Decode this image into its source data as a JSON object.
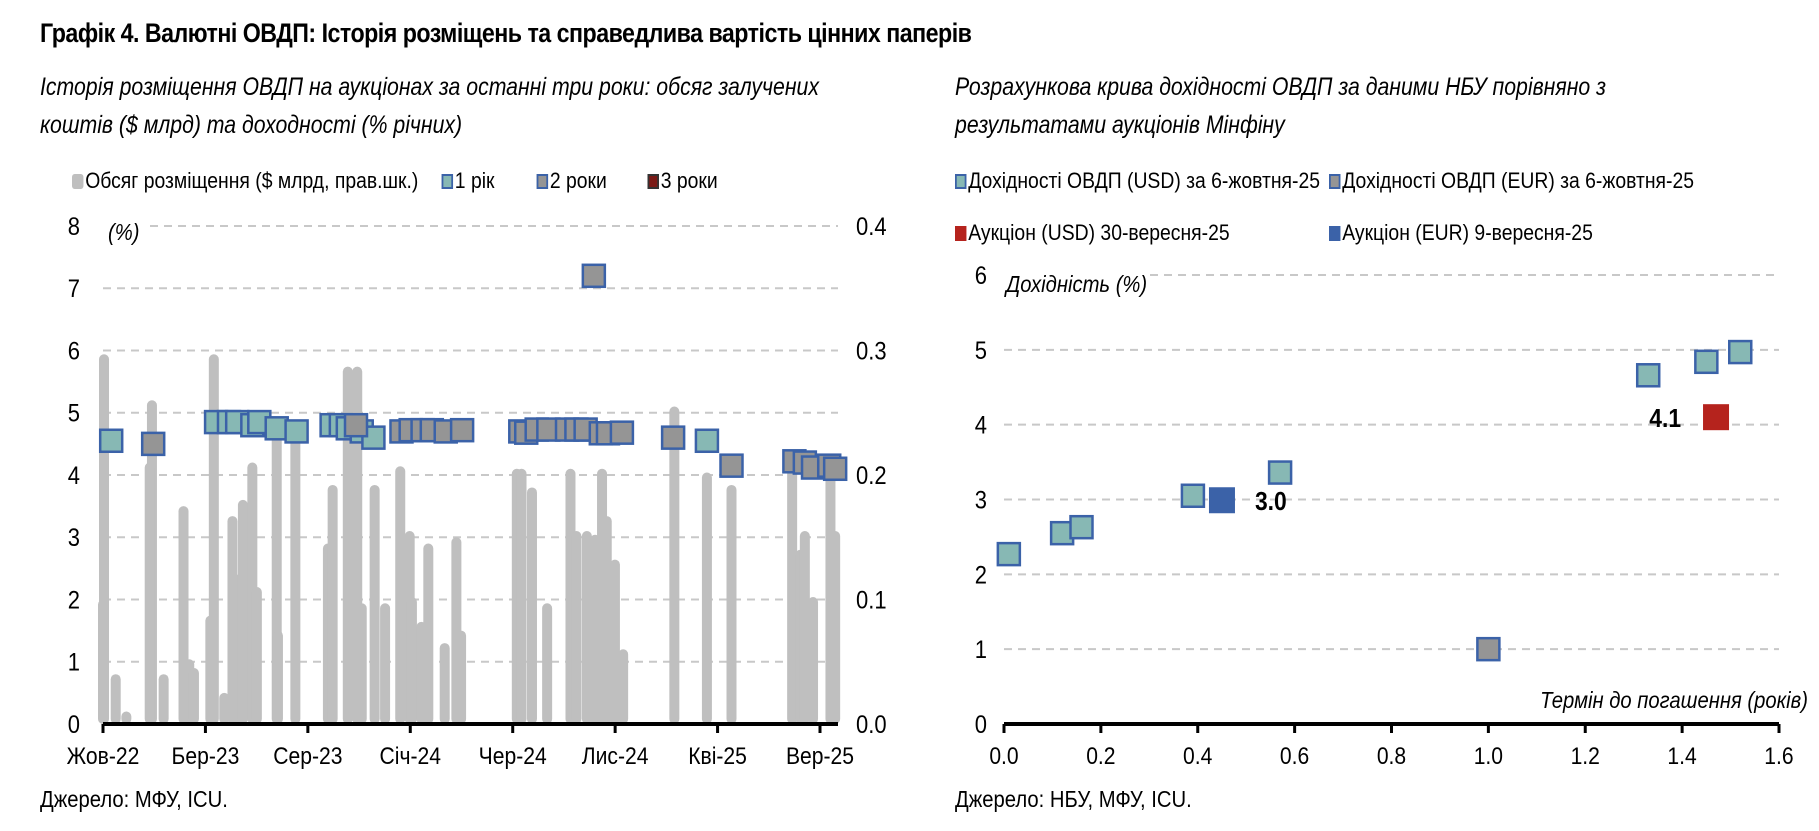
{
  "title": "Графік 4. Валютні ОВДП: Історія розміщень та справедлива вартість цінних паперів",
  "source_left": "Джерело: МФУ, ICU.",
  "source_right": "Джерело: НБУ, МФУ, ICU.",
  "colors": {
    "bar": "#bfbfbf",
    "y1": "#87b8b4",
    "y2": "#959595",
    "y3": "#7a1a16",
    "marker_border": "#3b62a8",
    "auction_usd": "#b5231d",
    "auction_eur": "#3b62a8",
    "grid": "#c8c8c8"
  },
  "chart_data": [
    {
      "type": "bar+scatter",
      "subtitle_line1": "Історія розміщення ОВДП на аукціонах за останні три роки: обсяг залучених",
      "subtitle_line2": "коштів ($ млрд) та доходності (% річних)",
      "ylabel_left": "(%)",
      "ylim_left": [
        0,
        8
      ],
      "yticks_left": [
        "0",
        "1",
        "2",
        "3",
        "4",
        "5",
        "6",
        "7",
        "8"
      ],
      "ylim_right": [
        0,
        0.4
      ],
      "yticks_right": [
        "0.0",
        "0.1",
        "0.2",
        "0.3",
        "0.4"
      ],
      "grid": true,
      "x_unit": "months since Oct-2022",
      "xlim": [
        0,
        35.6
      ],
      "xtick_positions": [
        0,
        5,
        10,
        15,
        20,
        25,
        30,
        35
      ],
      "xtick_labels": [
        "Жов-22",
        "Бер-23",
        "Сер-23",
        "Січ-24",
        "Чер-24",
        "Лис-24",
        "Кві-25",
        "Вер-25"
      ],
      "legend": [
        {
          "name": "Обсяг розміщення ($ млрд, прав.шк.)",
          "key": "bar"
        },
        {
          "name": "1 рік",
          "key": "y1"
        },
        {
          "name": "2 роки",
          "key": "y2"
        },
        {
          "name": "3 роки",
          "key": "y3"
        }
      ],
      "bars_usd_bn": [
        [
          0.05,
          0.297
        ],
        [
          0.0,
          0.1
        ],
        [
          0.62,
          0.04
        ],
        [
          1.14,
          0.01
        ],
        [
          2.39,
          0.26
        ],
        [
          2.28,
          0.21
        ],
        [
          2.96,
          0.04
        ],
        [
          3.93,
          0.175
        ],
        [
          4.21,
          0.052
        ],
        [
          4.44,
          0.045
        ],
        [
          5.24,
          0.087
        ],
        [
          5.41,
          0.297
        ],
        [
          5.92,
          0.025
        ],
        [
          6.32,
          0.167
        ],
        [
          6.6,
          0.12
        ],
        [
          6.83,
          0.18
        ],
        [
          7.29,
          0.21
        ],
        [
          7.51,
          0.11
        ],
        [
          8.48,
          0.235
        ],
        [
          8.54,
          0.075
        ],
        [
          9.39,
          0.235
        ],
        [
          10.98,
          0.145
        ],
        [
          11.21,
          0.192
        ],
        [
          11.95,
          0.287
        ],
        [
          12.41,
          0.287
        ],
        [
          12.63,
          0.097
        ],
        [
          13.26,
          0.192
        ],
        [
          13.77,
          0.097
        ],
        [
          14.51,
          0.207
        ],
        [
          14.97,
          0.155
        ],
        [
          15.08,
          0.102
        ],
        [
          15.54,
          0.082
        ],
        [
          15.88,
          0.145
        ],
        [
          16.68,
          0.065
        ],
        [
          17.25,
          0.15
        ],
        [
          17.48,
          0.075
        ],
        [
          20.2,
          0.205
        ],
        [
          20.43,
          0.205
        ],
        [
          20.94,
          0.19
        ],
        [
          21.68,
          0.097
        ],
        [
          22.82,
          0.205
        ],
        [
          23.11,
          0.155
        ],
        [
          23.62,
          0.155
        ],
        [
          24.02,
          0.152
        ],
        [
          24.36,
          0.205
        ],
        [
          24.59,
          0.167
        ],
        [
          24.99,
          0.132
        ],
        [
          25.39,
          0.06
        ],
        [
          27.89,
          0.255
        ],
        [
          29.48,
          0.202
        ],
        [
          30.68,
          0.192
        ],
        [
          33.64,
          0.21
        ],
        [
          34.04,
          0.14
        ],
        [
          34.26,
          0.155
        ],
        [
          34.66,
          0.102
        ],
        [
          35.51,
          0.205
        ],
        [
          35.74,
          0.155
        ]
      ],
      "yields_pct": {
        "1 рік": [
          [
            0.4,
            4.55
          ],
          [
            5.52,
            4.85
          ],
          [
            6.15,
            4.85
          ],
          [
            6.55,
            4.85
          ],
          [
            7.29,
            4.8
          ],
          [
            7.63,
            4.85
          ],
          [
            8.48,
            4.75
          ],
          [
            9.45,
            4.7
          ],
          [
            11.16,
            4.8
          ],
          [
            11.61,
            4.8
          ],
          [
            11.95,
            4.75
          ],
          [
            12.63,
            4.7
          ],
          [
            13.2,
            4.6
          ],
          [
            29.48,
            4.55
          ]
        ],
        "2 роки": [
          [
            2.45,
            4.5
          ],
          [
            12.35,
            4.8
          ],
          [
            14.57,
            4.7
          ],
          [
            15.02,
            4.72
          ],
          [
            15.6,
            4.72
          ],
          [
            16.05,
            4.72
          ],
          [
            16.73,
            4.7
          ],
          [
            17.53,
            4.72
          ],
          [
            20.37,
            4.7
          ],
          [
            20.66,
            4.68
          ],
          [
            21.17,
            4.73
          ],
          [
            21.74,
            4.73
          ],
          [
            22.65,
            4.73
          ],
          [
            23.11,
            4.73
          ],
          [
            23.56,
            4.73
          ],
          [
            23.96,
            7.2
          ],
          [
            24.3,
            4.67
          ],
          [
            24.65,
            4.67
          ],
          [
            25.33,
            4.68
          ],
          [
            27.83,
            4.6
          ],
          [
            30.68,
            4.15
          ],
          [
            33.75,
            4.22
          ],
          [
            34.26,
            4.2
          ],
          [
            34.66,
            4.12
          ],
          [
            35.45,
            4.15
          ],
          [
            35.74,
            4.1
          ]
        ],
        "3 роки": []
      }
    },
    {
      "type": "scatter",
      "subtitle_line1": "Розрахункова крива дохідності ОВДП за даними НБУ порівняно з",
      "subtitle_line2": "результатами аукціонів Мінфіну",
      "ylabel": "Дохідність (%)",
      "xlabel": "Термін до погашення (років)",
      "xlim": [
        0,
        1.6
      ],
      "ylim": [
        0,
        6
      ],
      "xticks": [
        "0.0",
        "0.2",
        "0.4",
        "0.6",
        "0.8",
        "1.0",
        "1.2",
        "1.4",
        "1.6"
      ],
      "yticks": [
        "0",
        "1",
        "2",
        "3",
        "4",
        "5",
        "6"
      ],
      "grid": true,
      "legend": [
        {
          "name": "Дохідності ОВДП (USD) за 6-жовтня-25",
          "key": "usd_curve"
        },
        {
          "name": "Дохідності ОВДП (EUR) за 6-жовтня-25",
          "key": "eur_curve"
        },
        {
          "name": "Аукціон (USD) 30-вересня-25",
          "key": "auction_usd"
        },
        {
          "name": "Аукціон (EUR) 9-вересня-25",
          "key": "auction_eur"
        }
      ],
      "series": {
        "usd_curve": [
          [
            0.01,
            2.27
          ],
          [
            0.12,
            2.55
          ],
          [
            0.16,
            2.63
          ],
          [
            0.39,
            3.05
          ],
          [
            0.57,
            3.36
          ],
          [
            1.33,
            4.66
          ],
          [
            1.45,
            4.84
          ],
          [
            1.52,
            4.97
          ]
        ],
        "eur_curve": [
          [
            1.0,
            1.0
          ]
        ],
        "auction_usd": [
          [
            1.47,
            4.1
          ]
        ],
        "auction_eur": [
          [
            0.45,
            2.99
          ]
        ]
      },
      "annotations": [
        {
          "text": "3.0",
          "series": "auction_eur"
        },
        {
          "text": "4.1",
          "series": "auction_usd"
        }
      ]
    }
  ]
}
